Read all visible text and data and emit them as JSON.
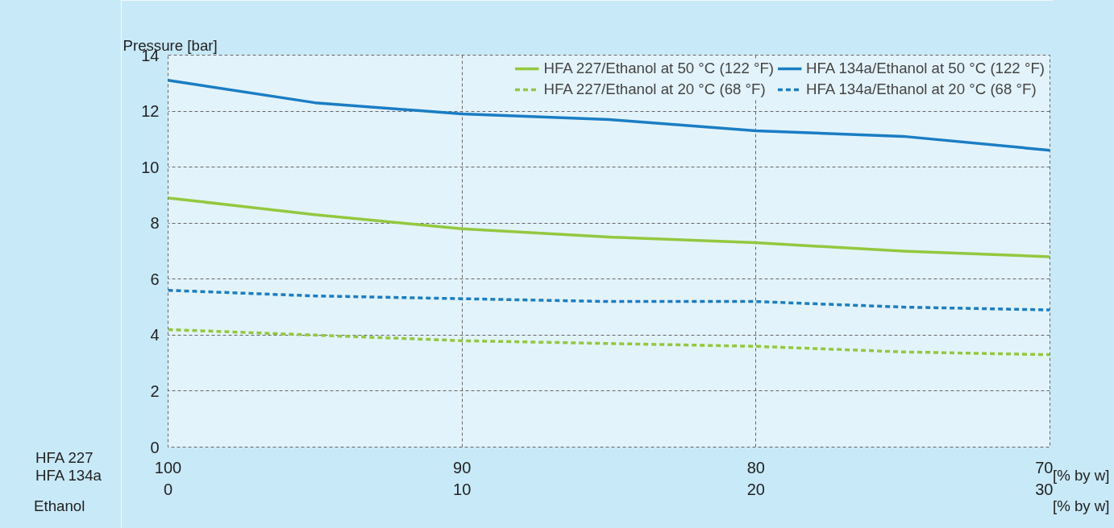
{
  "chart_data": {
    "type": "line",
    "ylabel": "Pressure [bar]",
    "x": [
      100,
      95,
      90,
      85,
      80,
      75,
      70
    ],
    "xlim": [
      100,
      70
    ],
    "xticks": [
      100,
      90,
      80,
      70
    ],
    "x2lim": [
      0,
      30
    ],
    "x2ticks": [
      0,
      10,
      20,
      30
    ],
    "ylim": [
      0,
      14
    ],
    "yticks": [
      0,
      2,
      4,
      6,
      8,
      10,
      12,
      14
    ],
    "series": [
      {
        "name": "HFA 227/Ethanol at 50 °C (122 °F)",
        "color": "#93c83e",
        "line_style": "solid",
        "values": [
          8.9,
          8.3,
          7.8,
          7.5,
          7.3,
          7.0,
          6.8
        ]
      },
      {
        "name": "HFA 227/Ethanol at 20 °C (68 °F)",
        "color": "#93c83e",
        "line_style": "dashed",
        "values": [
          4.2,
          4.0,
          3.8,
          3.7,
          3.6,
          3.4,
          3.3
        ]
      },
      {
        "name": "HFA 134a/Ethanol at 50 °C (122 °F)",
        "color": "#1a7dc4",
        "line_style": "solid",
        "values": [
          13.1,
          12.3,
          11.9,
          11.7,
          11.3,
          11.1,
          10.6
        ]
      },
      {
        "name": "HFA 134a/Ethanol at 20 °C (68 °F)",
        "color": "#1a7dc4",
        "line_style": "dashed",
        "values": [
          5.6,
          5.4,
          5.3,
          5.2,
          5.2,
          5.0,
          4.9
        ]
      }
    ],
    "annotations": [
      "HFA 227",
      "HFA 134a",
      "Ethanol",
      "[% by w]",
      "[% by w]"
    ],
    "grid": true,
    "legend": "top right",
    "marker": "none"
  }
}
